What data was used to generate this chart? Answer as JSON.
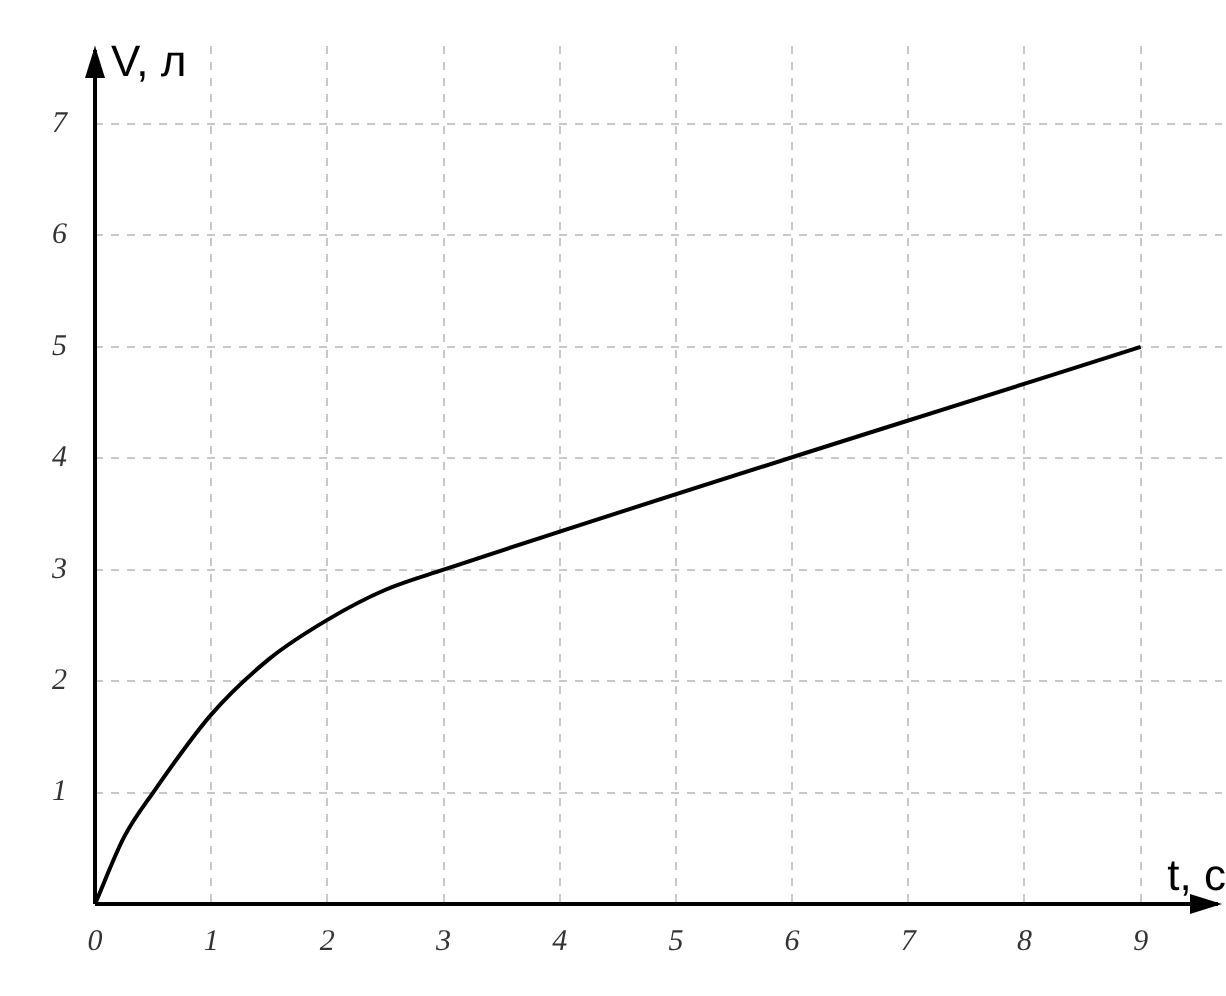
{
  "chart_data": {
    "type": "line",
    "xlabel": "t, c",
    "ylabel": "V, л",
    "x": [
      0,
      0.25,
      0.5,
      1,
      1.5,
      2,
      2.5,
      3,
      9
    ],
    "series": [
      {
        "color": "#000000",
        "values": [
          0,
          0.6,
          1.0,
          1.7,
          2.2,
          2.55,
          2.82,
          3,
          5
        ]
      }
    ],
    "xlim": [
      0,
      9.7
    ],
    "ylim": [
      0,
      7.7
    ],
    "xticks": [
      0,
      1,
      2,
      3,
      4,
      5,
      6,
      7,
      8,
      9
    ],
    "yticks": [
      1,
      2,
      3,
      4,
      5,
      6,
      7
    ],
    "grid": true,
    "legend": false,
    "marker": "none",
    "line_style": "solid"
  }
}
